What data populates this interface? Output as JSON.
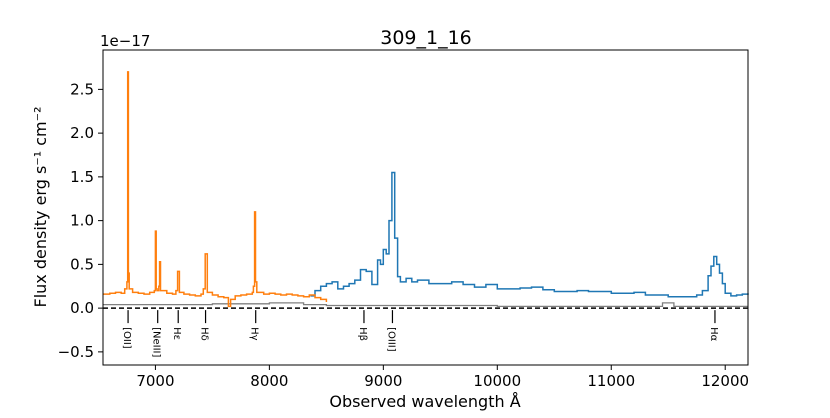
{
  "chart_data": {
    "type": "line",
    "title": "309_1_16",
    "xlabel": "Observed wavelength Å",
    "ylabel": "Flux density erg s⁻¹ cm⁻²",
    "offset_text": "1e−17",
    "xlim": [
      6540,
      12200
    ],
    "ylim": [
      -0.65,
      2.95
    ],
    "xticks": [
      7000,
      8000,
      9000,
      10000,
      11000,
      12000
    ],
    "yticks": [
      -0.5,
      0.0,
      0.5,
      1.0,
      1.5,
      2.0,
      2.5
    ],
    "ytick_labels": [
      "−0.5",
      "0.0",
      "0.5",
      "1.0",
      "1.5",
      "2.0",
      "2.5"
    ],
    "baseline": 0,
    "colors": {
      "blue": "#1f77b4",
      "orange": "#ff7f0e",
      "gray": "#808080",
      "black": "#000000"
    },
    "series": [
      {
        "name": "orange spectrum",
        "color": "#ff7f0e",
        "x": [
          6540,
          6600,
          6650,
          6700,
          6730,
          6750,
          6757,
          6763,
          6770,
          6800,
          6850,
          6900,
          6950,
          6990,
          7000,
          7007,
          7015,
          7030,
          7037,
          7045,
          7100,
          7150,
          7180,
          7195,
          7210,
          7250,
          7300,
          7350,
          7400,
          7420,
          7437,
          7455,
          7500,
          7550,
          7600,
          7640,
          7660,
          7700,
          7750,
          7800,
          7850,
          7860,
          7870,
          7878,
          7890,
          7950,
          8000,
          8050,
          8100,
          8150,
          8200,
          8250,
          8300,
          8350,
          8400,
          8450,
          8500
        ],
        "y": [
          0.16,
          0.17,
          0.18,
          0.17,
          0.22,
          0.3,
          2.7,
          0.4,
          0.22,
          0.18,
          0.17,
          0.16,
          0.18,
          0.2,
          0.88,
          0.22,
          0.2,
          0.25,
          0.53,
          0.2,
          0.17,
          0.16,
          0.2,
          0.42,
          0.18,
          0.16,
          0.15,
          0.14,
          0.16,
          0.22,
          0.62,
          0.18,
          0.15,
          0.13,
          0.12,
          0.02,
          0.1,
          0.14,
          0.15,
          0.16,
          0.18,
          0.25,
          1.1,
          0.3,
          0.18,
          0.16,
          0.17,
          0.16,
          0.15,
          0.16,
          0.15,
          0.14,
          0.13,
          0.15,
          0.12,
          0.1,
          0.07
        ]
      },
      {
        "name": "blue spectrum",
        "color": "#1f77b4",
        "x": [
          8360,
          8400,
          8450,
          8500,
          8550,
          8600,
          8650,
          8700,
          8750,
          8800,
          8850,
          8900,
          8950,
          8975,
          9000,
          9025,
          9050,
          9075,
          9100,
          9125,
          9150,
          9200,
          9250,
          9300,
          9400,
          9500,
          9600,
          9700,
          9800,
          9900,
          10000,
          10100,
          10200,
          10300,
          10400,
          10500,
          10600,
          10700,
          10800,
          10900,
          11000,
          11100,
          11200,
          11300,
          11400,
          11500,
          11600,
          11700,
          11750,
          11800,
          11850,
          11875,
          11900,
          11925,
          11950,
          11975,
          12000,
          12050,
          12100,
          12150,
          12200
        ],
        "y": [
          0.14,
          0.2,
          0.25,
          0.28,
          0.3,
          0.22,
          0.25,
          0.28,
          0.32,
          0.44,
          0.42,
          0.27,
          0.55,
          0.5,
          0.67,
          0.62,
          1.0,
          1.55,
          0.8,
          0.36,
          0.3,
          0.34,
          0.3,
          0.32,
          0.28,
          0.28,
          0.3,
          0.27,
          0.24,
          0.27,
          0.22,
          0.22,
          0.23,
          0.24,
          0.21,
          0.19,
          0.19,
          0.2,
          0.19,
          0.19,
          0.17,
          0.17,
          0.18,
          0.15,
          0.15,
          0.13,
          0.13,
          0.13,
          0.15,
          0.2,
          0.37,
          0.48,
          0.59,
          0.5,
          0.4,
          0.28,
          0.17,
          0.14,
          0.15,
          0.16,
          0.17
        ]
      },
      {
        "name": "noise",
        "color": "#808080",
        "x": [
          6540,
          7000,
          7500,
          8000,
          8300,
          8500,
          9000,
          9500,
          10000,
          10500,
          11000,
          11400,
          11450,
          11500,
          11550,
          12000,
          12200
        ],
        "y": [
          0.04,
          0.04,
          0.05,
          0.06,
          0.04,
          0.03,
          0.03,
          0.03,
          0.02,
          0.02,
          0.02,
          0.02,
          0.06,
          0.06,
          0.02,
          0.02,
          0.02
        ]
      }
    ],
    "emission_lines": [
      {
        "label": "[OII]",
        "x": 6760
      },
      {
        "label": "[NeIII]",
        "x": 7020
      },
      {
        "label": "Hε",
        "x": 7200
      },
      {
        "label": "Hδ",
        "x": 7440
      },
      {
        "label": "Hγ",
        "x": 7880
      },
      {
        "label": "Hβ",
        "x": 8830
      },
      {
        "label": "[OIII]",
        "x": 9080
      },
      {
        "label": "Hα",
        "x": 11910
      }
    ]
  }
}
